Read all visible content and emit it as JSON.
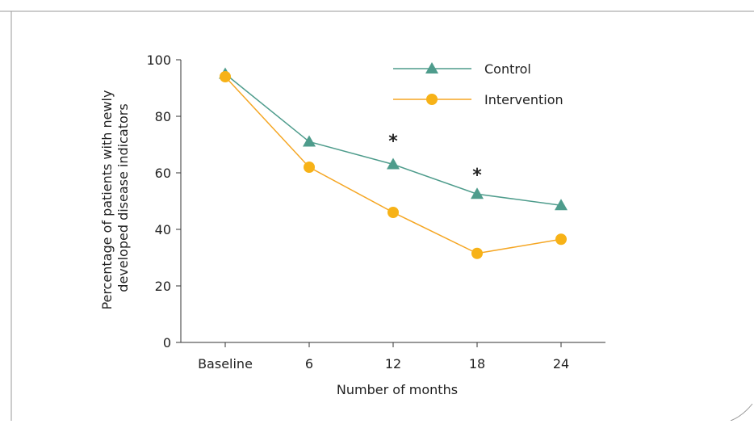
{
  "chart_data": {
    "type": "line",
    "title": "",
    "xlabel": "Number of months",
    "ylabel_lines": [
      "Percentage of patients with newly",
      "developed disease indicators"
    ],
    "categories": [
      "Baseline",
      "6",
      "12",
      "18",
      "24"
    ],
    "ylim": [
      0,
      100
    ],
    "yticks": [
      0,
      20,
      40,
      60,
      80,
      100
    ],
    "grid": false,
    "legend_position": "top-right",
    "series": [
      {
        "name": "Control",
        "marker": "triangle",
        "color": "#4e9c8c",
        "values": [
          95,
          71,
          63,
          52.5,
          48.5
        ]
      },
      {
        "name": "Intervention",
        "marker": "circle",
        "color": "#f5a623",
        "marker_fill": "#f7b217",
        "values": [
          94,
          62,
          46,
          31.5,
          36.5
        ]
      }
    ],
    "annotations": [
      {
        "text": "*",
        "category": "12",
        "y": 72
      },
      {
        "text": "*",
        "category": "18",
        "y": 60
      }
    ]
  }
}
